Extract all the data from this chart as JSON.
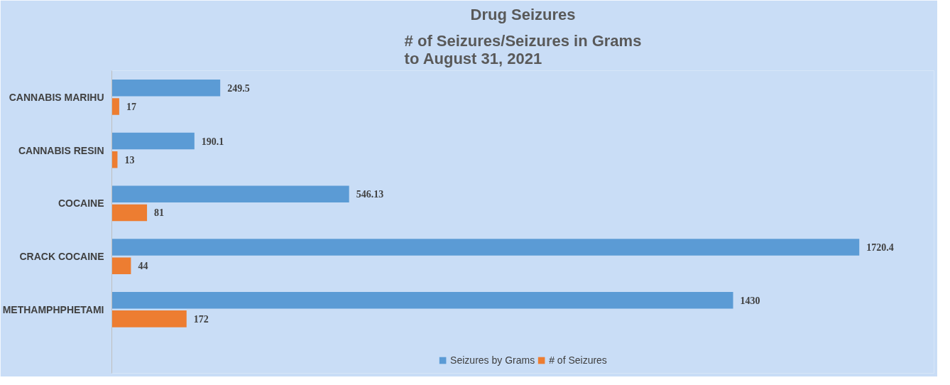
{
  "chart_data": {
    "type": "bar",
    "orientation": "horizontal",
    "title": "Drug Seizures",
    "subtitle": "# of Seizures/Seizures in Grams\nto August 31, 2021",
    "categories": [
      "CANNABIS MARIHU",
      "CANNABIS RESIN",
      "COCAINE",
      "CRACK COCAINE",
      "METHAMPHPHETAMI"
    ],
    "series": [
      {
        "name": "Seizures by Grams",
        "color": "#5b9bd5",
        "values": [
          249.5,
          190.1,
          546.13,
          1720.4,
          1430
        ]
      },
      {
        "name": "# of Seizures",
        "color": "#ed7d31",
        "values": [
          17,
          13,
          81,
          44,
          172
        ]
      }
    ],
    "data_labels": true,
    "legend": "bottom",
    "grid": false
  }
}
